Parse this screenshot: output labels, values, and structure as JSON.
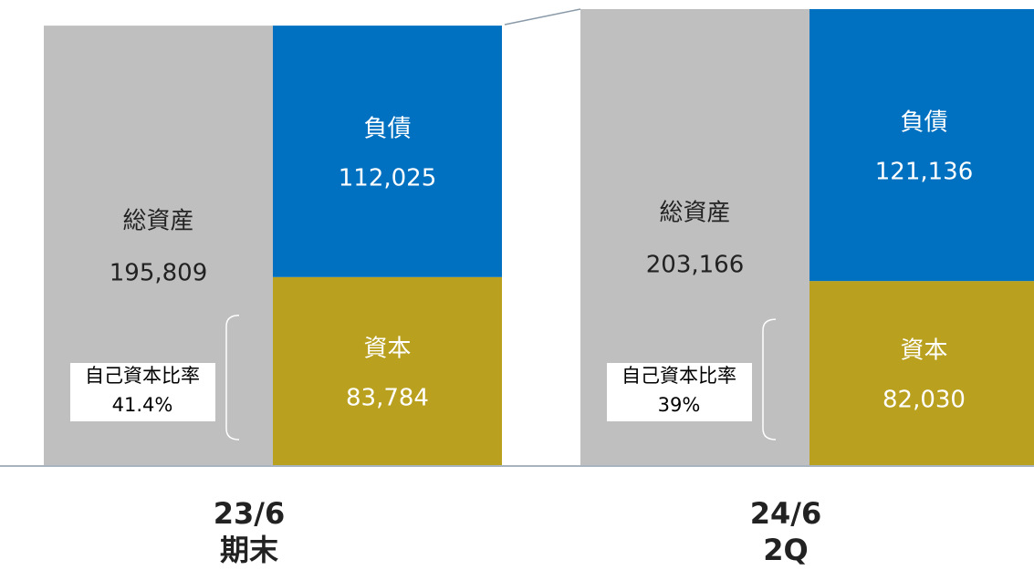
{
  "chart_data": {
    "type": "bar",
    "categories": [
      [
        "23/6",
        "期末"
      ],
      [
        "24/6",
        "2Q"
      ]
    ],
    "series": [
      {
        "name": "総資産",
        "color": "#bfbfbf",
        "values": [
          195809,
          203166
        ],
        "value_labels": [
          "195,809",
          "203,166"
        ]
      },
      {
        "name": "負債",
        "color": "#0070c0",
        "values": [
          112025,
          121136
        ],
        "value_labels": [
          "112,025",
          "121,136"
        ]
      },
      {
        "name": "資本",
        "color": "#b9a01e",
        "values": [
          83784,
          82030
        ],
        "value_labels": [
          "83,784",
          "82,030"
        ]
      }
    ],
    "ratio": {
      "name": "自己資本比率",
      "values": [
        41.4,
        39
      ],
      "value_labels": [
        "41.4%",
        "39%"
      ]
    }
  }
}
